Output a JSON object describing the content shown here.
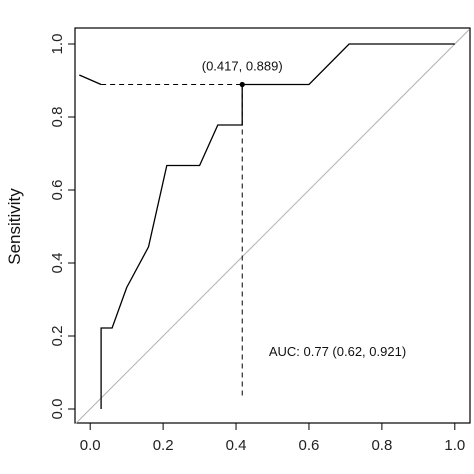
{
  "chart_data": {
    "type": "line",
    "title": "",
    "xlabel": "",
    "ylabel": "Sensitivity",
    "xlim": [
      0,
      1
    ],
    "ylim": [
      0,
      1
    ],
    "x_ticks": [
      "0.0",
      "0.2",
      "0.4",
      "0.6",
      "0.8",
      "1.0"
    ],
    "y_ticks": [
      "0.0",
      "0.2",
      "0.4",
      "0.6",
      "0.8",
      "1.0"
    ],
    "grid": false,
    "legend": "none",
    "series": [
      {
        "color": "#000000",
        "x": [
          0.03,
          0.03,
          0.06,
          0.1,
          0.16,
          0.21,
          0.3,
          0.35,
          0.417,
          0.417,
          0.6,
          0.71,
          1.0
        ],
        "y": [
          0.0,
          0.222,
          0.222,
          0.333,
          0.444,
          0.667,
          0.667,
          0.778,
          0.778,
          0.889,
          0.889,
          1.0,
          1.0
        ]
      }
    ],
    "reference_line": {
      "x": [
        0,
        1
      ],
      "y": [
        0,
        1
      ],
      "color": "#b0b0b0"
    },
    "optimal_point": {
      "x": 0.417,
      "y": 0.889,
      "label": "(0.417, 0.889)"
    },
    "annotation": "AUC: 0.77 (0.62, 0.921)"
  }
}
